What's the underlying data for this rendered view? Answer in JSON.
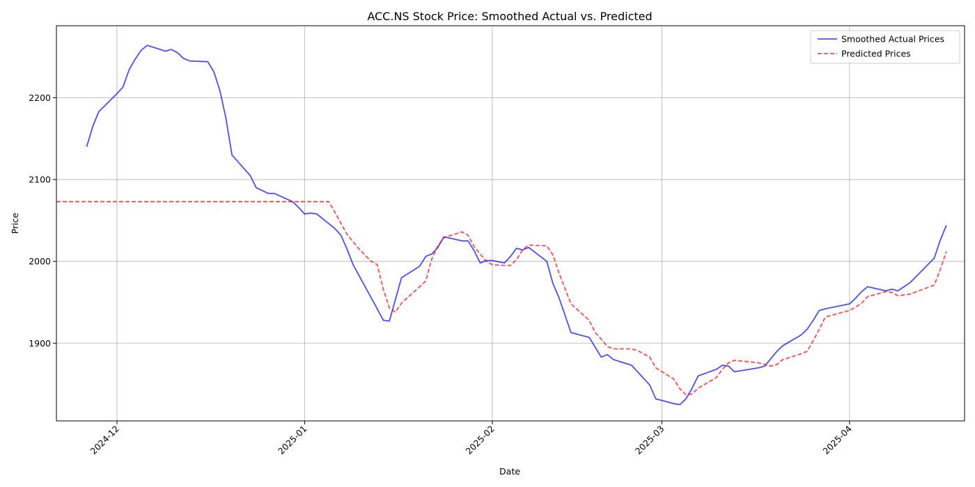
{
  "chart_data": {
    "type": "line",
    "title": "ACC.NS Stock Price: Smoothed Actual vs. Predicted",
    "xlabel": "Date",
    "ylabel": "Price",
    "grid": true,
    "legend_position": "top-right",
    "x_axis": {
      "type": "date",
      "range": [
        "2024-11-21",
        "2025-04-20"
      ],
      "ticks": [
        "2024-12-01",
        "2025-01-01",
        "2025-02-01",
        "2025-03-01",
        "2025-04-01"
      ],
      "tick_labels": [
        "2024-12",
        "2025-01",
        "2025-02",
        "2025-03",
        "2025-04"
      ]
    },
    "y_axis": {
      "range": [
        1805,
        2288
      ],
      "ticks": [
        1900,
        2000,
        2100,
        2200
      ],
      "tick_labels": [
        "1900",
        "2000",
        "2100",
        "2200"
      ]
    },
    "series": [
      {
        "name": "Smoothed Actual Prices",
        "color": "#0000ff",
        "style": "solid",
        "points": [
          [
            "2024-11-26",
            2140
          ],
          [
            "2024-11-27",
            2165
          ],
          [
            "2024-11-28",
            2183
          ],
          [
            "2024-12-01",
            2205
          ],
          [
            "2024-12-02",
            2213
          ],
          [
            "2024-12-03",
            2234
          ],
          [
            "2024-12-04",
            2247
          ],
          [
            "2024-12-05",
            2258
          ],
          [
            "2024-12-06",
            2264
          ],
          [
            "2024-12-09",
            2257
          ],
          [
            "2024-12-10",
            2259
          ],
          [
            "2024-12-11",
            2255
          ],
          [
            "2024-12-12",
            2248
          ],
          [
            "2024-12-13",
            2245
          ],
          [
            "2024-12-16",
            2244
          ],
          [
            "2024-12-17",
            2232
          ],
          [
            "2024-12-18",
            2209
          ],
          [
            "2024-12-19",
            2175
          ],
          [
            "2024-12-20",
            2130
          ],
          [
            "2024-12-23",
            2105
          ],
          [
            "2024-12-24",
            2090
          ],
          [
            "2024-12-26",
            2083
          ],
          [
            "2024-12-27",
            2083
          ],
          [
            "2024-12-30",
            2073
          ],
          [
            "2024-12-31",
            2066
          ],
          [
            "2025-01-01",
            2058
          ],
          [
            "2025-01-02",
            2059
          ],
          [
            "2025-01-03",
            2058
          ],
          [
            "2025-01-06",
            2040
          ],
          [
            "2025-01-07",
            2032
          ],
          [
            "2025-01-08",
            2015
          ],
          [
            "2025-01-09",
            1996
          ],
          [
            "2025-01-13",
            1942
          ],
          [
            "2025-01-14",
            1928
          ],
          [
            "2025-01-15",
            1927
          ],
          [
            "2025-01-17",
            1980
          ],
          [
            "2025-01-20",
            1994
          ],
          [
            "2025-01-21",
            2006
          ],
          [
            "2025-01-22",
            2009
          ],
          [
            "2025-01-23",
            2017
          ],
          [
            "2025-01-24",
            2030
          ],
          [
            "2025-01-27",
            2025
          ],
          [
            "2025-01-28",
            2025
          ],
          [
            "2025-01-29",
            2013
          ],
          [
            "2025-01-30",
            1998
          ],
          [
            "2025-01-31",
            2001
          ],
          [
            "2025-02-01",
            2001
          ],
          [
            "2025-02-03",
            1998
          ],
          [
            "2025-02-04",
            2006
          ],
          [
            "2025-02-05",
            2016
          ],
          [
            "2025-02-06",
            2014
          ],
          [
            "2025-02-07",
            2017
          ],
          [
            "2025-02-10",
            2000
          ],
          [
            "2025-02-11",
            1973
          ],
          [
            "2025-02-12",
            1956
          ],
          [
            "2025-02-14",
            1913
          ],
          [
            "2025-02-17",
            1907
          ],
          [
            "2025-02-19",
            1883
          ],
          [
            "2025-02-20",
            1886
          ],
          [
            "2025-02-21",
            1880
          ],
          [
            "2025-02-24",
            1873
          ],
          [
            "2025-02-27",
            1849
          ],
          [
            "2025-02-28",
            1832
          ],
          [
            "2025-03-03",
            1826
          ],
          [
            "2025-03-04",
            1825
          ],
          [
            "2025-03-05",
            1832
          ],
          [
            "2025-03-06",
            1845
          ],
          [
            "2025-03-07",
            1860
          ],
          [
            "2025-03-10",
            1868
          ],
          [
            "2025-03-11",
            1873
          ],
          [
            "2025-03-12",
            1872
          ],
          [
            "2025-03-13",
            1865
          ],
          [
            "2025-03-17",
            1870
          ],
          [
            "2025-03-18",
            1872
          ],
          [
            "2025-03-20",
            1890
          ],
          [
            "2025-03-21",
            1897
          ],
          [
            "2025-03-24",
            1910
          ],
          [
            "2025-03-25",
            1917
          ],
          [
            "2025-03-26",
            1928
          ],
          [
            "2025-03-27",
            1940
          ],
          [
            "2025-03-28",
            1942
          ],
          [
            "2025-04-01",
            1948
          ],
          [
            "2025-04-02",
            1955
          ],
          [
            "2025-04-03",
            1963
          ],
          [
            "2025-04-04",
            1969
          ],
          [
            "2025-04-07",
            1964
          ],
          [
            "2025-04-08",
            1966
          ],
          [
            "2025-04-09",
            1964
          ],
          [
            "2025-04-11",
            1974
          ],
          [
            "2025-04-15",
            2004
          ],
          [
            "2025-04-16",
            2026
          ],
          [
            "2025-04-17",
            2044
          ]
        ]
      },
      {
        "name": "Predicted Prices",
        "color": "#ff0000",
        "style": "dashed",
        "points": [
          [
            "2024-11-21",
            2073
          ],
          [
            "2025-01-05",
            2073
          ],
          [
            "2025-01-06",
            2060
          ],
          [
            "2025-01-08",
            2033
          ],
          [
            "2025-01-10",
            2015
          ],
          [
            "2025-01-12",
            2000
          ],
          [
            "2025-01-13",
            1996
          ],
          [
            "2025-01-14",
            1966
          ],
          [
            "2025-01-15",
            1943
          ],
          [
            "2025-01-16",
            1938
          ],
          [
            "2025-01-17",
            1949
          ],
          [
            "2025-01-20",
            1969
          ],
          [
            "2025-01-21",
            1976
          ],
          [
            "2025-01-22",
            2003
          ],
          [
            "2025-01-23",
            2019
          ],
          [
            "2025-01-24",
            2029
          ],
          [
            "2025-01-27",
            2036
          ],
          [
            "2025-01-28",
            2032
          ],
          [
            "2025-01-29",
            2018
          ],
          [
            "2025-01-31",
            2000
          ],
          [
            "2025-02-01",
            1996
          ],
          [
            "2025-02-03",
            1995
          ],
          [
            "2025-02-04",
            1995
          ],
          [
            "2025-02-05",
            2002
          ],
          [
            "2025-02-06",
            2014
          ],
          [
            "2025-02-07",
            2020
          ],
          [
            "2025-02-10",
            2019
          ],
          [
            "2025-02-11",
            2008
          ],
          [
            "2025-02-12",
            1986
          ],
          [
            "2025-02-14",
            1948
          ],
          [
            "2025-02-17",
            1928
          ],
          [
            "2025-02-18",
            1913
          ],
          [
            "2025-02-19",
            1905
          ],
          [
            "2025-02-20",
            1896
          ],
          [
            "2025-02-21",
            1893
          ],
          [
            "2025-02-24",
            1893
          ],
          [
            "2025-02-25",
            1891
          ],
          [
            "2025-02-27",
            1883
          ],
          [
            "2025-02-28",
            1870
          ],
          [
            "2025-03-03",
            1856
          ],
          [
            "2025-03-04",
            1844
          ],
          [
            "2025-03-05",
            1837
          ],
          [
            "2025-03-06",
            1838
          ],
          [
            "2025-03-07",
            1845
          ],
          [
            "2025-03-10",
            1858
          ],
          [
            "2025-03-11",
            1868
          ],
          [
            "2025-03-12",
            1876
          ],
          [
            "2025-03-13",
            1879
          ],
          [
            "2025-03-17",
            1876
          ],
          [
            "2025-03-18",
            1874
          ],
          [
            "2025-03-19",
            1872
          ],
          [
            "2025-03-20",
            1874
          ],
          [
            "2025-03-21",
            1880
          ],
          [
            "2025-03-24",
            1887
          ],
          [
            "2025-03-25",
            1890
          ],
          [
            "2025-03-26",
            1903
          ],
          [
            "2025-03-27",
            1917
          ],
          [
            "2025-03-28",
            1932
          ],
          [
            "2025-04-01",
            1940
          ],
          [
            "2025-04-02",
            1944
          ],
          [
            "2025-04-03",
            1949
          ],
          [
            "2025-04-04",
            1957
          ],
          [
            "2025-04-07",
            1963
          ],
          [
            "2025-04-08",
            1962
          ],
          [
            "2025-04-09",
            1958
          ],
          [
            "2025-04-11",
            1960
          ],
          [
            "2025-04-15",
            1971
          ],
          [
            "2025-04-16",
            1990
          ],
          [
            "2025-04-17",
            2012
          ]
        ]
      }
    ]
  }
}
